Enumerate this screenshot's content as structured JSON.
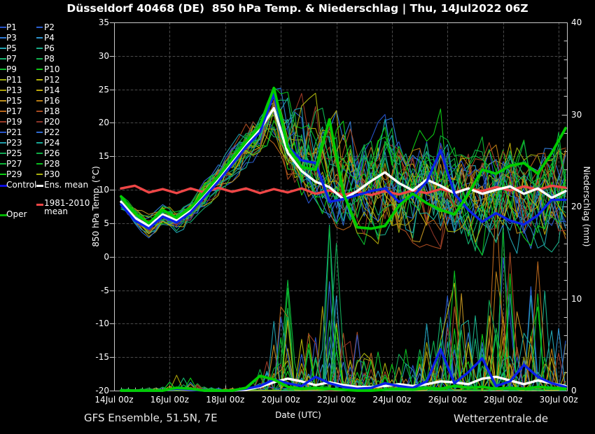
{
  "title": "Düsseldorf 40468 (DE)  850 hPa Temp. & Niederschlag | Thu, 14Jul2022 06Z",
  "footer": {
    "left": "GFS Ensemble, 51.5N, 7E",
    "right": "Wetterzentrale.de"
  },
  "colors": {
    "background": "#000000",
    "grid": "#4a4a4a",
    "axis": "#c8c8c8",
    "text": "#ffffff"
  },
  "legend": {
    "members": [
      {
        "label": "P1",
        "color": "#2753c9"
      },
      {
        "label": "P2",
        "color": "#2a5ecf"
      },
      {
        "label": "P3",
        "color": "#2f79d4"
      },
      {
        "label": "P4",
        "color": "#2e93cd"
      },
      {
        "label": "P5",
        "color": "#21a3b1"
      },
      {
        "label": "P6",
        "color": "#18ad88"
      },
      {
        "label": "P7",
        "color": "#13b06d"
      },
      {
        "label": "P8",
        "color": "#10b350"
      },
      {
        "label": "P9",
        "color": "#0cbb2e"
      },
      {
        "label": "P10",
        "color": "#0dc814"
      },
      {
        "label": "P11",
        "color": "#9aa90e"
      },
      {
        "label": "P12",
        "color": "#b6b60c"
      },
      {
        "label": "P13",
        "color": "#a89d08"
      },
      {
        "label": "P14",
        "color": "#bca70a"
      },
      {
        "label": "P15",
        "color": "#bc8f1e"
      },
      {
        "label": "P16",
        "color": "#b87c14"
      },
      {
        "label": "P17",
        "color": "#b5641a"
      },
      {
        "label": "P18",
        "color": "#a84a20"
      },
      {
        "label": "P19",
        "color": "#9a3a26"
      },
      {
        "label": "P20",
        "color": "#8c3428"
      },
      {
        "label": "P21",
        "color": "#2753c9"
      },
      {
        "label": "P22",
        "color": "#2f6ad0"
      },
      {
        "label": "P23",
        "color": "#1f9aa8"
      },
      {
        "label": "P24",
        "color": "#18a897"
      },
      {
        "label": "P25",
        "color": "#12a855"
      },
      {
        "label": "P26",
        "color": "#0fae45"
      },
      {
        "label": "P27",
        "color": "#0cb437"
      },
      {
        "label": "P28",
        "color": "#09bd1f"
      },
      {
        "label": "P29",
        "color": "#0bce12"
      },
      {
        "label": "P30",
        "color": "#aab00e"
      }
    ],
    "control": {
      "label": "Control",
      "color": "#0b0bdf"
    },
    "ens_mean": {
      "label": "Ens. mean",
      "color": "#ffffff"
    },
    "clim_mean": {
      "label_line1": "1981-2010",
      "label_line2": "mean",
      "color": "#ef4646"
    },
    "oper": {
      "label": "Oper",
      "color": "#00b400"
    }
  },
  "chart_data": {
    "type": "line",
    "title": "Düsseldorf 40468 (DE)  850 hPa Temp. & Niederschlag | Thu, 14Jul2022 06Z",
    "x_axis": {
      "label": "Date (UTC)",
      "tick_days": [
        14,
        16,
        18,
        20,
        22,
        24,
        26,
        28,
        30
      ],
      "tick_labels": [
        "14Jul 00z",
        "16Jul 00z",
        "18Jul 00z",
        "20Jul 00z",
        "22Jul 00z",
        "24Jul 00z",
        "26Jul 00z",
        "28Jul 00z",
        "30Jul 00z"
      ],
      "range_days": [
        14,
        30.3
      ]
    },
    "y_left": {
      "label": "850 hPa Temp. (°C)",
      "min": -20,
      "max": 35,
      "tick_step": 5,
      "ticks": [
        "35",
        "30",
        "25",
        "20",
        "15",
        "10",
        "5",
        "0",
        "-5",
        "-10",
        "-15",
        "-20"
      ]
    },
    "y_right": {
      "label": "Niederschlag (mm)",
      "min": 0,
      "max": 40,
      "tick_step": 10,
      "minor_step": 2,
      "ticks": [
        "40",
        "30",
        "20",
        "10",
        "0"
      ]
    },
    "grid": {
      "vertical_days": [
        16,
        18,
        20,
        22,
        24,
        26,
        28,
        30
      ],
      "horizontal_temps": [
        30,
        25,
        20,
        15,
        10,
        5,
        0,
        -5,
        -10,
        -15
      ]
    },
    "days": [
      14.25,
      14.75,
      15.25,
      15.75,
      16.25,
      16.75,
      17.25,
      17.75,
      18.25,
      18.75,
      19.25,
      19.75,
      20.25,
      20.75,
      21.25,
      21.75,
      22.25,
      22.75,
      23.25,
      23.75,
      24.25,
      24.75,
      25.25,
      25.75,
      26.25,
      26.75,
      27.25,
      27.75,
      28.25,
      28.75,
      29.25,
      29.75,
      30.25
    ],
    "series": [
      {
        "name": "Ens. mean",
        "color": "#ffffff",
        "width": 3.4,
        "temp": [
          8.2,
          5.8,
          4.6,
          6.3,
          5.4,
          6.9,
          9.2,
          11.6,
          14.2,
          16.8,
          19.0,
          22.2,
          15.5,
          12.8,
          11.2,
          10.4,
          8.6,
          9.8,
          11.3,
          12.6,
          11.0,
          9.9,
          11.5,
          10.6,
          9.5,
          10.2,
          9.4,
          10.0,
          10.5,
          9.4,
          10.2,
          8.8,
          9.8
        ],
        "precip": [
          0,
          0,
          0,
          0,
          0.3,
          0.2,
          0,
          0,
          0,
          0.1,
          0.4,
          0.9,
          1.3,
          1.0,
          0.6,
          0.9,
          0.6,
          0.4,
          0.4,
          0.5,
          0.7,
          0.5,
          0.7,
          1.0,
          0.9,
          0.7,
          1.3,
          1.5,
          1.1,
          0.7,
          1.1,
          0.8,
          0.5
        ]
      },
      {
        "name": "Control",
        "color": "#0b22e8",
        "width": 3.4,
        "temp": [
          7.8,
          5.4,
          4.2,
          6.0,
          5.1,
          6.6,
          8.9,
          11.2,
          13.8,
          16.4,
          18.6,
          24.3,
          16.5,
          14.4,
          14.0,
          8.2,
          8.6,
          9.2,
          9.8,
          10.2,
          8.2,
          9.0,
          11.2,
          15.9,
          9.4,
          7.0,
          5.2,
          6.5,
          5.4,
          4.8,
          6.2,
          8.5,
          8.5
        ],
        "precip": [
          0,
          0,
          0,
          0,
          0.2,
          0.1,
          0,
          0,
          0,
          0.2,
          0.5,
          1.2,
          0.8,
          0.5,
          1.5,
          0.8,
          0.4,
          0.2,
          0.3,
          0.8,
          0.5,
          0.3,
          1.0,
          4.5,
          0.8,
          2.0,
          3.5,
          0.5,
          1.0,
          2.8,
          1.5,
          0.8,
          0.4
        ]
      },
      {
        "name": "Oper",
        "color": "#00cc00",
        "width": 3.8,
        "temp": [
          9.0,
          6.5,
          5.0,
          7.0,
          5.8,
          7.3,
          9.6,
          12.0,
          14.6,
          17.2,
          19.5,
          25.2,
          16.4,
          13.4,
          13.0,
          20.5,
          9.5,
          4.4,
          4.2,
          4.6,
          7.6,
          9.4,
          8.0,
          7.0,
          6.3,
          9.4,
          13.0,
          12.4,
          13.6,
          14.0,
          12.4,
          15.5,
          19.2
        ],
        "precip": [
          0,
          0,
          0,
          0,
          0.3,
          0.2,
          0,
          0,
          0,
          0.3,
          1.6,
          1.2,
          0.4,
          0.2,
          0.3,
          0.2,
          0.1,
          0,
          0,
          0.1,
          0.2,
          0.1,
          0.3,
          0.2,
          0.5,
          0.3,
          0.4,
          0.2,
          0.3,
          0.2,
          0.4,
          0.3,
          0.2
        ]
      },
      {
        "name": "1981-2010 mean",
        "color": "#ef4646",
        "width": 3.4,
        "temp": [
          10.2,
          10.6,
          9.6,
          10.1,
          9.5,
          10.2,
          9.6,
          10.3,
          9.7,
          10.2,
          9.5,
          10.1,
          9.6,
          10.2,
          9.4,
          9.9,
          9.2,
          9.7,
          9.2,
          9.8,
          9.3,
          9.9,
          9.5,
          10.1,
          9.6,
          10.2,
          9.8,
          10.4,
          9.9,
          10.5,
          10.0,
          10.6,
          10.3
        ]
      }
    ],
    "ensemble": {
      "seeds": [
        11,
        22,
        33,
        44,
        55,
        66,
        77,
        88,
        99,
        110,
        121,
        132,
        143,
        154,
        165,
        176,
        187,
        198,
        209,
        220,
        231,
        242,
        253,
        264,
        275,
        286,
        297,
        308,
        319,
        330
      ],
      "temp_spread_low": [
        7.0,
        4.6,
        3.0,
        4.8,
        3.6,
        5.0,
        7.2,
        9.4,
        11.5,
        13.5,
        15.0,
        16.5,
        11.0,
        8.5,
        7.0,
        5.0,
        3.2,
        2.5,
        3.0,
        3.0,
        2.2,
        2.0,
        2.8,
        2.2,
        2.0,
        1.8,
        1.2,
        1.8,
        1.8,
        1.2,
        1.8,
        1.2,
        2.0
      ],
      "temp_spread_high": [
        9.6,
        7.6,
        6.2,
        7.8,
        7.0,
        8.6,
        11.2,
        13.6,
        16.5,
        19.5,
        21.8,
        25.0,
        24.0,
        24.0,
        23.0,
        21.0,
        20.0,
        18.0,
        19.5,
        21.5,
        18.0,
        17.0,
        19.0,
        21.5,
        17.0,
        16.0,
        17.0,
        16.5,
        17.5,
        18.0,
        17.0,
        18.5,
        19.5
      ],
      "precip_peak": [
        0.4,
        0.3,
        0.3,
        0.4,
        1.8,
        1.5,
        0.4,
        0.3,
        0.3,
        0.5,
        3.5,
        8.0,
        12.0,
        10.0,
        6.5,
        18.0,
        9.0,
        7.0,
        4.5,
        4.0,
        5.5,
        6.0,
        7.5,
        8.5,
        13.0,
        9.0,
        10.0,
        21.0,
        15.0,
        9.0,
        14.0,
        8.0,
        6.0
      ],
      "precip_events": [
        {
          "day": 21.75,
          "mm": 18,
          "member": 23
        },
        {
          "day": 22.0,
          "mm": 16,
          "member": 24
        },
        {
          "day": 20.25,
          "mm": 12,
          "member": 26
        },
        {
          "day": 26.25,
          "mm": 13,
          "member": 27
        },
        {
          "day": 27.75,
          "mm": 21,
          "member": 16
        },
        {
          "day": 28.25,
          "mm": 15,
          "member": 17
        },
        {
          "day": 29.25,
          "mm": 14,
          "member": 16
        }
      ]
    }
  }
}
